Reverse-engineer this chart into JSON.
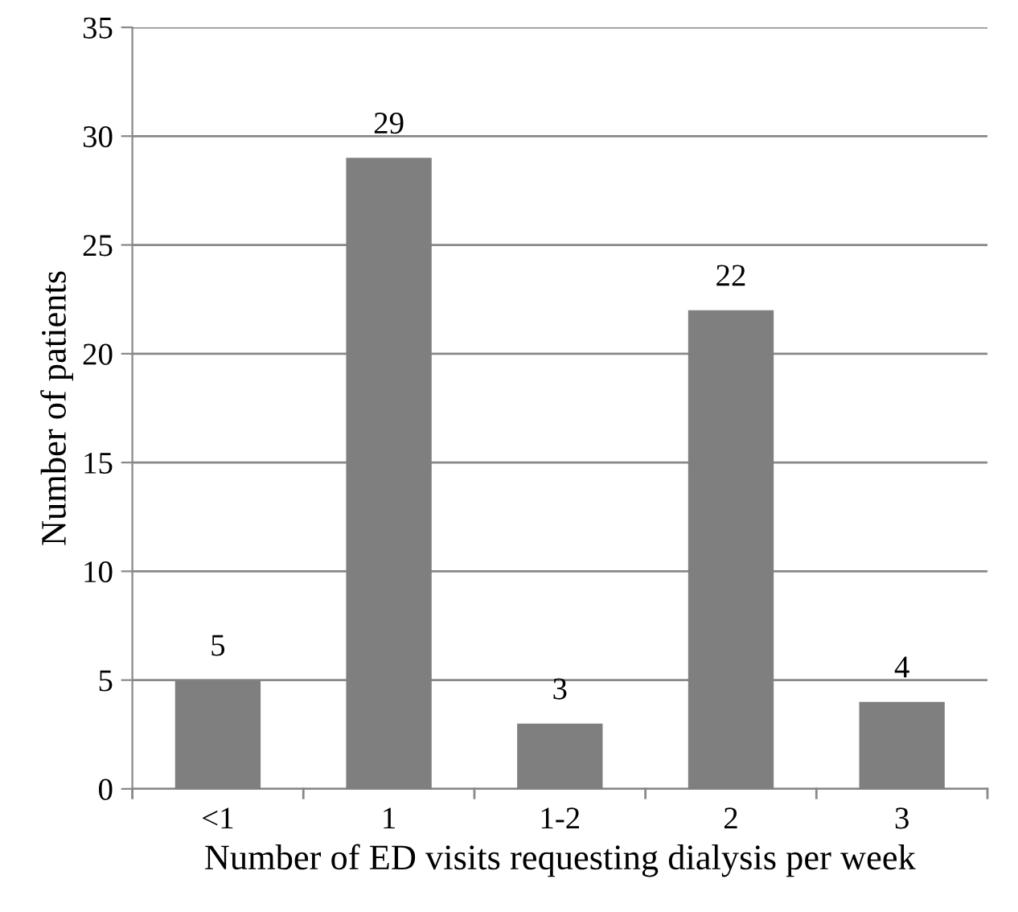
{
  "chart_data": {
    "type": "bar",
    "xlabel": "Number of ED visits requesting dialysis per week",
    "ylabel": "Number of patients",
    "categories": [
      "<1",
      "1",
      "1-2",
      "2",
      "3"
    ],
    "values": [
      5,
      29,
      3,
      22,
      4
    ],
    "color": "#7f7f7f",
    "ylim": [
      0,
      35
    ],
    "yticks": [
      0,
      5,
      10,
      15,
      20,
      25,
      30,
      35
    ],
    "grid": "y",
    "data_labels": true
  }
}
